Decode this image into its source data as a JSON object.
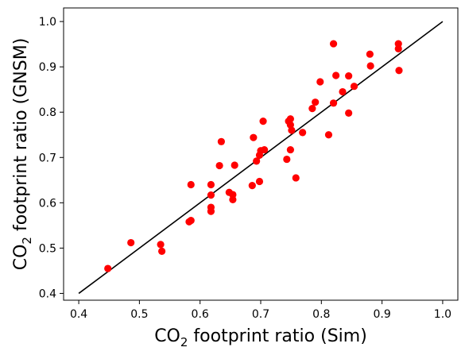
{
  "chart_data": {
    "type": "scatter",
    "title": "",
    "xlabel": {
      "prefix": "CO",
      "sub": "2",
      "suffix": " footprint ratio (Sim)"
    },
    "ylabel": {
      "prefix": "CO",
      "sub": "2",
      "suffix": " footprint ratio (GNSM)"
    },
    "xlim": [
      0.375,
      1.025
    ],
    "ylim": [
      0.385,
      1.03
    ],
    "xticks": [
      "0.4",
      "0.5",
      "0.6",
      "0.7",
      "0.8",
      "0.9",
      "1.0"
    ],
    "yticks": [
      "0.4",
      "0.5",
      "0.6",
      "0.7",
      "0.8",
      "0.9",
      "1.0"
    ],
    "grid": false,
    "legend": "none",
    "point_color": "#ff0000",
    "line_color": "#000000",
    "reference_line": {
      "x": [
        0.4,
        1.0
      ],
      "y": [
        0.4,
        1.0
      ]
    },
    "series": [
      {
        "points": [
          [
            0.448,
            0.455
          ],
          [
            0.486,
            0.512
          ],
          [
            0.535,
            0.508
          ],
          [
            0.537,
            0.493
          ],
          [
            0.582,
            0.558
          ],
          [
            0.585,
            0.561
          ],
          [
            0.585,
            0.64
          ],
          [
            0.618,
            0.581
          ],
          [
            0.618,
            0.59
          ],
          [
            0.618,
            0.617
          ],
          [
            0.618,
            0.64
          ],
          [
            0.632,
            0.682
          ],
          [
            0.635,
            0.735
          ],
          [
            0.648,
            0.623
          ],
          [
            0.654,
            0.607
          ],
          [
            0.654,
            0.618
          ],
          [
            0.657,
            0.683
          ],
          [
            0.686,
            0.638
          ],
          [
            0.688,
            0.744
          ],
          [
            0.693,
            0.692
          ],
          [
            0.698,
            0.705
          ],
          [
            0.698,
            0.647
          ],
          [
            0.7,
            0.715
          ],
          [
            0.704,
            0.78
          ],
          [
            0.706,
            0.717
          ],
          [
            0.743,
            0.696
          ],
          [
            0.746,
            0.78
          ],
          [
            0.749,
            0.785
          ],
          [
            0.749,
            0.772
          ],
          [
            0.749,
            0.717
          ],
          [
            0.751,
            0.76
          ],
          [
            0.758,
            0.655
          ],
          [
            0.769,
            0.755
          ],
          [
            0.785,
            0.808
          ],
          [
            0.79,
            0.822
          ],
          [
            0.798,
            0.867
          ],
          [
            0.812,
            0.75
          ],
          [
            0.82,
            0.82
          ],
          [
            0.82,
            0.951
          ],
          [
            0.824,
            0.881
          ],
          [
            0.835,
            0.845
          ],
          [
            0.845,
            0.88
          ],
          [
            0.845,
            0.798
          ],
          [
            0.854,
            0.857
          ],
          [
            0.88,
            0.928
          ],
          [
            0.881,
            0.902
          ],
          [
            0.927,
            0.951
          ],
          [
            0.927,
            0.94
          ],
          [
            0.928,
            0.892
          ]
        ]
      }
    ]
  }
}
